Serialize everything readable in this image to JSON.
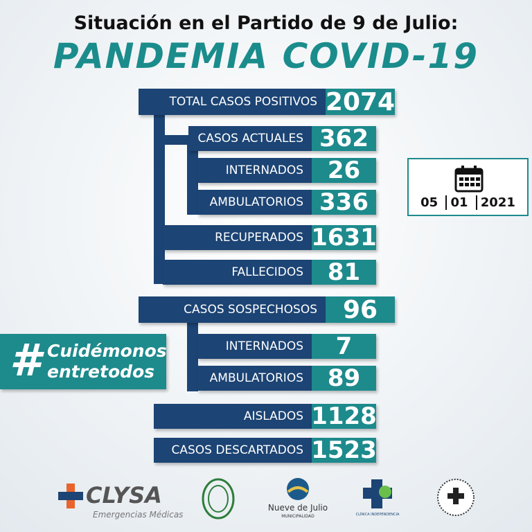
{
  "header": {
    "title": "Situación en el Partido de 9 de Julio:",
    "subtitle": "PANDEMIA COVID-19"
  },
  "stats": [
    {
      "label": "TOTAL CASOS POSITIVOS",
      "value": "2074"
    },
    {
      "label": "CASOS ACTUALES",
      "value": "362"
    },
    {
      "label": "INTERNADOS",
      "value": "26"
    },
    {
      "label": "AMBULATORIOS",
      "value": "336"
    },
    {
      "label": "RECUPERADOS",
      "value": "1631"
    },
    {
      "label": "FALLECIDOS",
      "value": "81"
    },
    {
      "label": "CASOS SOSPECHOSOS",
      "value": "96"
    },
    {
      "label": "INTERNADOS",
      "value": "7"
    },
    {
      "label": "AMBULATORIOS",
      "value": "89"
    },
    {
      "label": "AISLADOS",
      "value": "1128"
    },
    {
      "label": "CASOS DESCARTADOS",
      "value": "1523"
    }
  ],
  "date": {
    "day": "05",
    "month": "01",
    "year": "2021"
  },
  "hashtag": {
    "symbol": "#",
    "lines": [
      "Cuidémonos",
      "entretodos"
    ]
  },
  "logos": {
    "clysa": "CLYSA",
    "clysa_tagline": "Emergencias Médicas",
    "municipality": "Nueve de Julio",
    "municipality_sub": "MUNICIPALIDAD",
    "clinic": "CLÍNICA INDEPENDENCIA"
  }
}
